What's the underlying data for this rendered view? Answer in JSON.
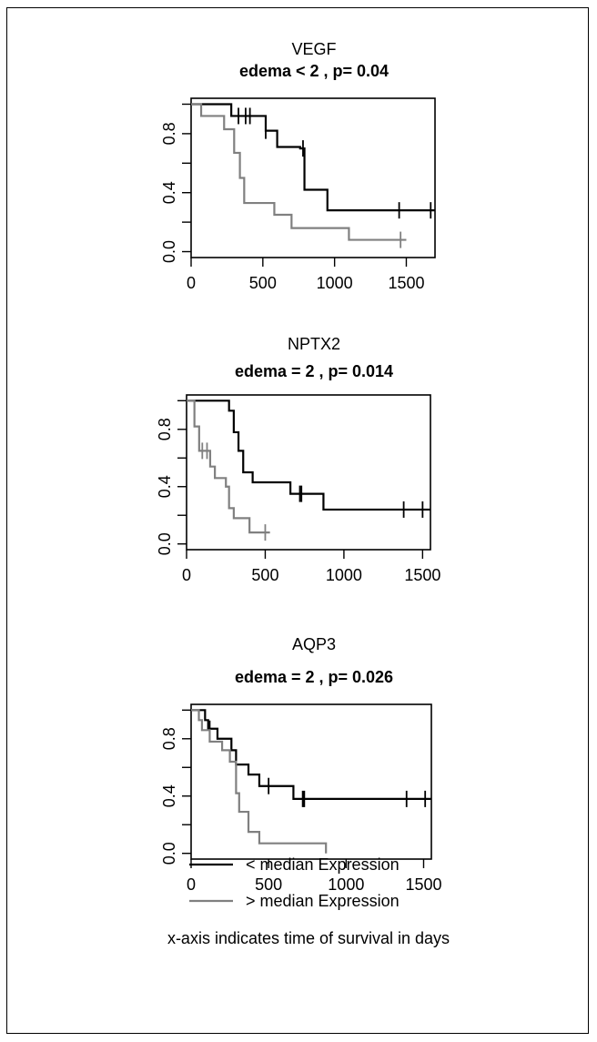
{
  "chart_data": [
    {
      "type": "line",
      "title": "VEGF",
      "subtitle": "edema < 2 , p= 0.04",
      "xlim": [
        0,
        1700
      ],
      "ylim": [
        0,
        1
      ],
      "xticks": [
        "0",
        "500",
        "1000",
        "1500"
      ],
      "yticks": [
        "0.0",
        "0.4",
        "0.8"
      ],
      "series": [
        {
          "name": "< median Expression",
          "color": "#000000",
          "steps": [
            [
              0,
              1.0
            ],
            [
              280,
              0.92
            ],
            [
              520,
              0.82
            ],
            [
              600,
              0.71
            ],
            [
              760,
              0.7
            ],
            [
              790,
              0.42
            ],
            [
              950,
              0.28
            ],
            [
              1700,
              0.28
            ]
          ],
          "censors": [
            [
              330,
              0.92
            ],
            [
              380,
              0.92
            ],
            [
              410,
              0.92
            ],
            [
              520,
              0.82
            ],
            [
              780,
              0.7
            ],
            [
              1450,
              0.28
            ],
            [
              1670,
              0.28
            ]
          ]
        },
        {
          "name": "> median Expression",
          "color": "#808080",
          "steps": [
            [
              0,
              1.0
            ],
            [
              70,
              0.92
            ],
            [
              230,
              0.83
            ],
            [
              300,
              0.67
            ],
            [
              340,
              0.5
            ],
            [
              370,
              0.33
            ],
            [
              580,
              0.25
            ],
            [
              700,
              0.16
            ],
            [
              1100,
              0.08
            ],
            [
              1500,
              0.08
            ]
          ],
          "censors": [
            [
              1460,
              0.08
            ]
          ]
        }
      ]
    },
    {
      "type": "line",
      "title": "NPTX2",
      "subtitle": "edema = 2 , p= 0.014",
      "xlim": [
        0,
        1550
      ],
      "ylim": [
        0,
        1
      ],
      "xticks": [
        "0",
        "500",
        "1000",
        "1500"
      ],
      "yticks": [
        "0.0",
        "0.4",
        "0.8"
      ],
      "series": [
        {
          "name": "< median Expression",
          "color": "#000000",
          "steps": [
            [
              0,
              1.0
            ],
            [
              200,
              1.0
            ],
            [
              270,
              0.93
            ],
            [
              300,
              0.78
            ],
            [
              330,
              0.65
            ],
            [
              360,
              0.5
            ],
            [
              420,
              0.43
            ],
            [
              660,
              0.35
            ],
            [
              870,
              0.24
            ],
            [
              1550,
              0.24
            ]
          ],
          "censors": [
            [
              720,
              0.35
            ],
            [
              730,
              0.35
            ],
            [
              1380,
              0.24
            ],
            [
              1500,
              0.24
            ]
          ]
        },
        {
          "name": "> median Expression",
          "color": "#808080",
          "steps": [
            [
              0,
              1.0
            ],
            [
              50,
              0.82
            ],
            [
              80,
              0.65
            ],
            [
              150,
              0.54
            ],
            [
              180,
              0.46
            ],
            [
              250,
              0.4
            ],
            [
              270,
              0.25
            ],
            [
              300,
              0.18
            ],
            [
              400,
              0.08
            ],
            [
              530,
              0.08
            ]
          ],
          "censors": [
            [
              100,
              0.65
            ],
            [
              130,
              0.65
            ],
            [
              500,
              0.08
            ]
          ]
        }
      ]
    },
    {
      "type": "line",
      "title": "AQP3",
      "subtitle": "edema = 2 , p= 0.026",
      "xlim": [
        0,
        1550
      ],
      "ylim": [
        0,
        1
      ],
      "xticks": [
        "0",
        "500",
        "1000",
        "1500"
      ],
      "yticks": [
        "0.0",
        "0.4",
        "0.8"
      ],
      "series": [
        {
          "name": "< median Expression",
          "color": "#000000",
          "steps": [
            [
              0,
              1.0
            ],
            [
              90,
              0.93
            ],
            [
              110,
              0.87
            ],
            [
              170,
              0.8
            ],
            [
              260,
              0.72
            ],
            [
              290,
              0.62
            ],
            [
              370,
              0.55
            ],
            [
              440,
              0.47
            ],
            [
              660,
              0.38
            ],
            [
              1550,
              0.38
            ]
          ],
          "censors": [
            [
              120,
              0.87
            ],
            [
              500,
              0.47
            ],
            [
              720,
              0.38
            ],
            [
              730,
              0.38
            ],
            [
              1390,
              0.38
            ],
            [
              1510,
              0.38
            ]
          ]
        },
        {
          "name": "> median Expression",
          "color": "#808080",
          "steps": [
            [
              0,
              1.0
            ],
            [
              50,
              0.93
            ],
            [
              70,
              0.86
            ],
            [
              120,
              0.78
            ],
            [
              200,
              0.72
            ],
            [
              250,
              0.64
            ],
            [
              290,
              0.42
            ],
            [
              310,
              0.29
            ],
            [
              370,
              0.15
            ],
            [
              440,
              0.07
            ],
            [
              870,
              0.07
            ],
            [
              870,
              0.0
            ]
          ],
          "censors": []
        }
      ]
    }
  ],
  "legend": {
    "items": [
      {
        "label": "< median Expression",
        "color": "#000000"
      },
      {
        "label": "> median Expression",
        "color": "#808080"
      }
    ]
  },
  "footnote": "x-axis indicates time of survival in days"
}
